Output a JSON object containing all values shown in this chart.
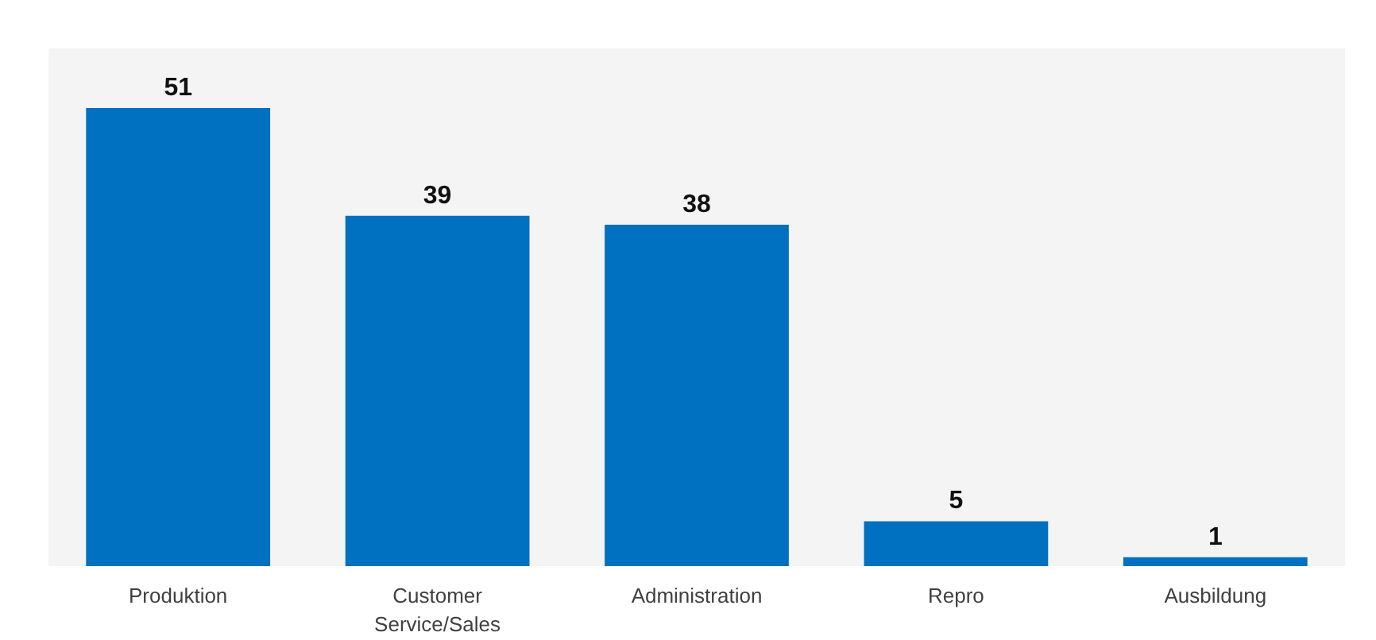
{
  "chart_data": {
    "type": "bar",
    "categories": [
      "Produktion",
      "Customer Service/Sales",
      "Administration",
      "Repro",
      "Ausbildung"
    ],
    "values": [
      51,
      39,
      38,
      5,
      1
    ],
    "color": "#0070c0",
    "data_labels": true
  }
}
